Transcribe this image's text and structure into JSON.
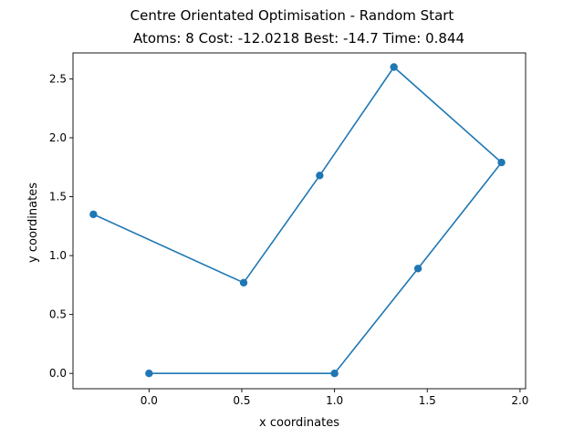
{
  "chart_data": {
    "type": "line",
    "title": "Centre Orientated Optimisation - Random Start",
    "subtitle": "Atoms: 8 Cost: -12.0218 Best: -14.7 Time: 0.844",
    "xlabel": "x coordinates",
    "ylabel": "y coordinates",
    "xlim": [
      -0.41,
      2.03
    ],
    "ylim": [
      -0.13,
      2.72
    ],
    "xticks": [
      0.0,
      0.5,
      1.0,
      1.5,
      2.0
    ],
    "xtick_labels": [
      "0.0",
      "0.5",
      "1.0",
      "1.5",
      "2.0"
    ],
    "yticks": [
      0.0,
      0.5,
      1.0,
      1.5,
      2.0,
      2.5
    ],
    "ytick_labels": [
      "0.0",
      "0.5",
      "1.0",
      "1.5",
      "2.0",
      "2.5"
    ],
    "grid": false,
    "color": "#1f77b4",
    "series": [
      {
        "x": [
          0.0,
          1.0,
          1.45,
          1.9,
          1.32,
          0.92,
          0.51,
          -0.3
        ],
        "y": [
          0.0,
          0.0,
          0.89,
          1.79,
          2.6,
          1.68,
          0.77,
          1.35
        ]
      }
    ]
  }
}
